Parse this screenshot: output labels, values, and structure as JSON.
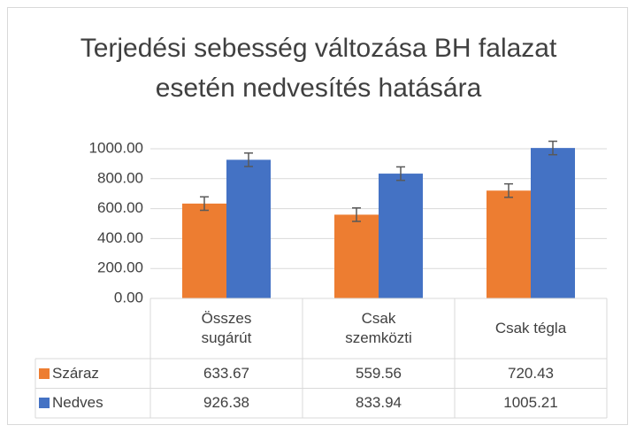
{
  "chart_data": {
    "type": "bar",
    "title": "Terjedési sebesség változása BH falazat esetén nedvesítés hatására",
    "categories": [
      "Összes sugárút",
      "Csak szemközti",
      "Csak tégla"
    ],
    "series": [
      {
        "name": "Száraz",
        "color": "#ed7d31",
        "values": [
          633.67,
          559.56,
          720.43
        ],
        "errors": [
          45,
          45,
          45
        ]
      },
      {
        "name": "Nedves",
        "color": "#4472c4",
        "values": [
          926.38,
          833.94,
          1005.21
        ],
        "errors": [
          45,
          45,
          45
        ]
      }
    ],
    "ylim": [
      0,
      1000
    ],
    "yticks": [
      {
        "value": 0,
        "label": "0.00"
      },
      {
        "value": 200,
        "label": "200.00"
      },
      {
        "value": 400,
        "label": "400.00"
      },
      {
        "value": 600,
        "label": "600.00"
      },
      {
        "value": 800,
        "label": "800.00"
      },
      {
        "value": 1000,
        "label": "1000.00"
      }
    ],
    "grid": true,
    "data_table": true
  }
}
